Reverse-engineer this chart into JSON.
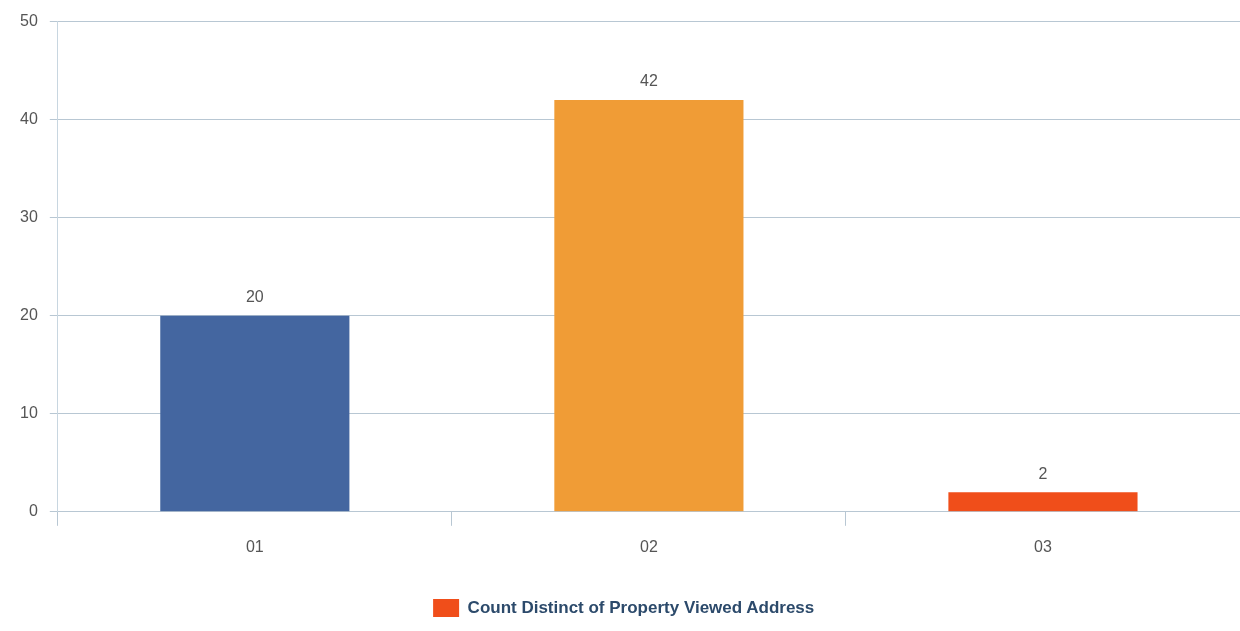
{
  "chart_data": {
    "type": "bar",
    "categories": [
      "01",
      "02",
      "03"
    ],
    "series": [
      {
        "name": "Count Distinct of Property Viewed Address",
        "color": "#f04e1a",
        "colors": [
          "#4466a0",
          "#f09c36",
          "#f04e1a"
        ],
        "values": [
          20,
          42,
          2
        ]
      }
    ],
    "ylim": [
      0,
      50
    ],
    "yticks": [
      0,
      10,
      20,
      30,
      40,
      50
    ],
    "grid": "y",
    "legend": "bottom",
    "data_labels": true
  }
}
